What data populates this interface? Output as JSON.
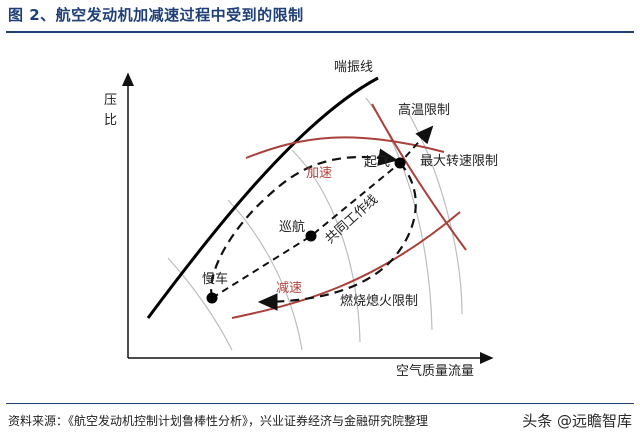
{
  "figure": {
    "title": "图 2、航空发动机加减速过程中受到的限制",
    "source": "资料来源：《航空发动机控制计划鲁棒性分析》，兴业证券经济与金融研究院整理",
    "watermark": "头条 @远瞻智库"
  },
  "diagram": {
    "axes": {
      "y_label_top": "压",
      "y_label_bottom": "比",
      "x_label": "空气质量流量"
    },
    "curves": {
      "surge_line": "喘振线",
      "high_temp_limit": "高温限制",
      "max_speed_limit": "最大转速限制",
      "combustion_limit": "燃烧熄火限制",
      "working_line": "共同工作线"
    },
    "paths": {
      "accel": "加速",
      "decel": "减速"
    },
    "points": {
      "takeoff": "起飞",
      "cruise": "巡航",
      "idle": "慢车"
    },
    "colors": {
      "title": "#1f3f77",
      "limit_curves": "#a8413b",
      "iso_speed_lines": "#b8b8b8"
    }
  }
}
